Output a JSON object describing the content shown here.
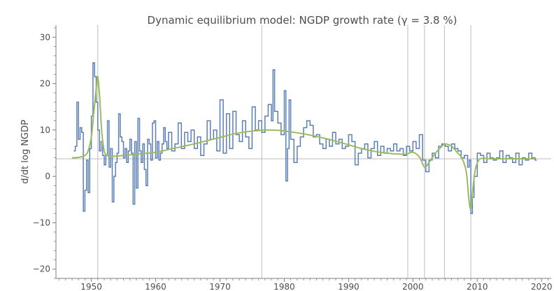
{
  "chart_data": {
    "type": "line",
    "title": "Dynamic equilibrium model: NGDP growth rate (γ = 3.8 %)",
    "ylabel": "d/dt log NGDP",
    "xlabel": "",
    "xlim": [
      1944.5,
      2021.5
    ],
    "ylim": [
      -22,
      32
    ],
    "x_ticks": [
      1950,
      1960,
      1970,
      1980,
      1990,
      2000,
      2010,
      2020
    ],
    "y_ticks": [
      -20,
      -10,
      0,
      10,
      20,
      30
    ],
    "grid": false,
    "reference_line": {
      "y": 3.8
    },
    "vertical_markers": [
      1951.0,
      1976.5,
      1999.2,
      2001.8,
      2004.9,
      2009.0
    ],
    "colors": {
      "data": "#5b7fb5",
      "model": "#9cba5f",
      "reference": "#bdbdbd",
      "axis": "#7f7f7f"
    },
    "series": [
      {
        "role": "data",
        "x": [
          1947.25,
          1947.5,
          1947.75,
          1948.0,
          1948.25,
          1948.5,
          1948.75,
          1949.0,
          1949.25,
          1949.5,
          1949.75,
          1950.0,
          1950.25,
          1950.5,
          1950.75,
          1951.0,
          1951.25,
          1951.5,
          1951.75,
          1952.0,
          1952.25,
          1952.5,
          1952.75,
          1953.0,
          1953.25,
          1953.5,
          1953.75,
          1954.0,
          1954.25,
          1954.5,
          1954.75,
          1955.0,
          1955.25,
          1955.5,
          1955.75,
          1956.0,
          1956.25,
          1956.5,
          1956.75,
          1957.0,
          1957.25,
          1957.5,
          1957.75,
          1958.0,
          1958.25,
          1958.5,
          1958.75,
          1959.0,
          1959.25,
          1959.5,
          1959.75,
          1960.0,
          1960.25,
          1960.5,
          1960.75,
          1961.0,
          1961.25,
          1961.5,
          1961.75,
          1962.0,
          1962.5,
          1963.0,
          1963.5,
          1964.0,
          1964.5,
          1965.0,
          1965.5,
          1966.0,
          1966.5,
          1967.0,
          1967.5,
          1968.0,
          1968.5,
          1969.0,
          1969.5,
          1970.0,
          1970.5,
          1971.0,
          1971.5,
          1972.0,
          1972.5,
          1973.0,
          1973.5,
          1974.0,
          1974.5,
          1975.0,
          1975.5,
          1976.0,
          1976.5,
          1977.0,
          1977.5,
          1978.0,
          1978.25,
          1978.5,
          1979.0,
          1979.5,
          1980.0,
          1980.25,
          1980.5,
          1980.75,
          1981.0,
          1981.5,
          1982.0,
          1982.5,
          1983.0,
          1983.5,
          1984.0,
          1984.5,
          1985.0,
          1985.5,
          1986.0,
          1986.5,
          1987.0,
          1987.5,
          1988.0,
          1988.5,
          1989.0,
          1989.5,
          1990.0,
          1990.5,
          1991.0,
          1991.5,
          1992.0,
          1992.5,
          1993.0,
          1993.5,
          1994.0,
          1994.5,
          1995.0,
          1995.5,
          1996.0,
          1996.5,
          1997.0,
          1997.5,
          1998.0,
          1998.5,
          1999.0,
          1999.5,
          2000.0,
          2000.5,
          2001.0,
          2001.5,
          2002.0,
          2002.5,
          2003.0,
          2003.5,
          2004.0,
          2004.5,
          2005.0,
          2005.5,
          2006.0,
          2006.5,
          2007.0,
          2007.5,
          2008.0,
          2008.5,
          2008.75,
          2009.0,
          2009.25,
          2009.5,
          2010.0,
          2010.5,
          2011.0,
          2011.5,
          2012.0,
          2012.5,
          2013.0,
          2013.5,
          2014.0,
          2014.5,
          2015.0,
          2015.5,
          2016.0,
          2016.5,
          2017.0,
          2017.5,
          2018.0,
          2018.5,
          2019.0
        ],
        "y": [
          5.5,
          6.5,
          16.0,
          8.0,
          10.5,
          9.5,
          -7.5,
          -3.0,
          3.5,
          -3.5,
          6.0,
          13.0,
          24.5,
          21.5,
          16.0,
          10.0,
          5.5,
          7.5,
          4.5,
          2.5,
          4.5,
          12.0,
          2.0,
          6.0,
          -5.5,
          0.0,
          3.0,
          5.0,
          13.5,
          8.5,
          7.5,
          4.0,
          6.0,
          3.0,
          5.5,
          8.0,
          5.0,
          -6.0,
          7.5,
          -2.5,
          12.5,
          5.5,
          3.0,
          7.0,
          1.5,
          -2.0,
          8.0,
          7.0,
          3.5,
          11.5,
          12.0,
          4.0,
          7.5,
          3.5,
          5.0,
          7.0,
          10.5,
          7.5,
          6.0,
          9.5,
          5.5,
          7.0,
          11.5,
          6.0,
          9.5,
          7.5,
          10.0,
          6.0,
          8.5,
          4.5,
          7.0,
          12.0,
          8.0,
          10.0,
          5.5,
          16.5,
          5.0,
          13.5,
          6.0,
          14.0,
          9.0,
          7.5,
          12.0,
          8.5,
          6.0,
          15.0,
          10.0,
          12.0,
          9.5,
          13.0,
          15.5,
          12.0,
          23.0,
          14.0,
          11.5,
          9.0,
          18.5,
          -1.0,
          6.0,
          16.5,
          8.0,
          3.0,
          6.5,
          8.5,
          10.5,
          12.0,
          11.0,
          8.5,
          9.0,
          7.0,
          6.0,
          8.0,
          6.5,
          9.5,
          7.0,
          8.0,
          6.0,
          6.5,
          9.0,
          7.5,
          2.5,
          5.0,
          6.0,
          7.0,
          4.0,
          6.0,
          7.5,
          4.5,
          6.5,
          5.0,
          6.0,
          5.5,
          7.0,
          5.5,
          6.0,
          4.5,
          6.5,
          5.5,
          7.5,
          6.0,
          9.0,
          3.5,
          1.0,
          3.5,
          5.0,
          4.0,
          6.5,
          7.0,
          6.5,
          5.5,
          7.0,
          6.0,
          5.5,
          4.0,
          4.5,
          2.0,
          3.5,
          -8.0,
          -4.5,
          0.0,
          5.0,
          4.5,
          3.0,
          5.0,
          4.0,
          3.5,
          4.0,
          5.5,
          3.0,
          4.5,
          4.0,
          3.0,
          5.0,
          2.5,
          4.0,
          3.5,
          5.0,
          4.0,
          3.5
        ]
      },
      {
        "role": "model",
        "x": [
          1947.0,
          1948.0,
          1949.0,
          1949.5,
          1950.0,
          1950.4,
          1950.8,
          1951.0,
          1951.3,
          1951.6,
          1952.0,
          1952.5,
          1953.0,
          1955.0,
          1957.0,
          1960.0,
          1962.0,
          1964.0,
          1966.0,
          1968.0,
          1970.0,
          1972.0,
          1974.0,
          1976.0,
          1978.0,
          1980.0,
          1982.0,
          1984.0,
          1986.0,
          1988.0,
          1990.0,
          1992.0,
          1994.0,
          1996.0,
          1998.0,
          1999.0,
          2000.0,
          2001.0,
          2001.8,
          2002.5,
          2003.5,
          2004.5,
          2005.0,
          2006.0,
          2007.0,
          2007.6,
          2008.3,
          2008.7,
          2009.0,
          2009.3,
          2009.7,
          2010.3,
          2011.0,
          2012.0,
          2014.0,
          2016.0,
          2018.0,
          2019.0
        ],
        "y": [
          4.0,
          4.1,
          4.5,
          5.5,
          8.5,
          14.0,
          19.5,
          21.5,
          17.0,
          10.0,
          5.5,
          4.5,
          4.3,
          4.5,
          4.8,
          5.2,
          5.8,
          6.4,
          7.0,
          7.7,
          8.4,
          9.1,
          9.6,
          9.9,
          10.0,
          9.8,
          9.4,
          8.9,
          8.3,
          7.6,
          6.8,
          6.0,
          5.4,
          5.0,
          4.8,
          4.8,
          5.2,
          4.2,
          2.0,
          3.0,
          5.0,
          6.5,
          7.0,
          6.5,
          5.0,
          4.0,
          1.0,
          -5.0,
          -7.0,
          -3.0,
          1.5,
          3.6,
          3.9,
          3.8,
          3.8,
          3.8,
          3.8,
          3.8
        ]
      }
    ]
  }
}
